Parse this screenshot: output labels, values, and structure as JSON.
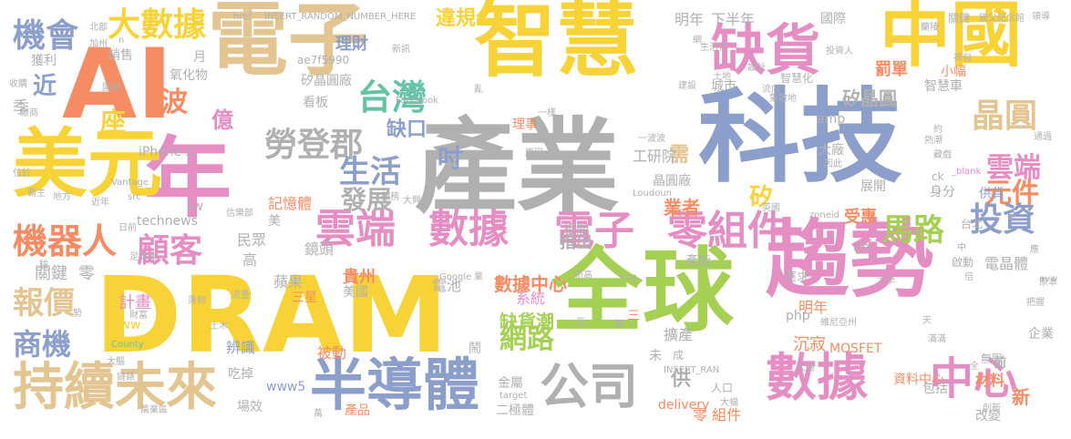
{
  "palette": {
    "yellow": "#f7d338",
    "blue": "#8c9fca",
    "gray": "#b0b0b0",
    "pink": "#e58ec4",
    "green": "#a6d054",
    "orange": "#f58c64",
    "tan": "#e3c592",
    "teal": "#66c2a5"
  },
  "words": [
    {
      "text": "產業",
      "color": "gray"
    },
    {
      "text": "科技",
      "color": "blue"
    },
    {
      "text": "DRAM",
      "color": "yellow"
    },
    {
      "text": "智慧",
      "color": "yellow"
    },
    {
      "text": "電子",
      "color": "tan"
    },
    {
      "text": "全球",
      "color": "green"
    },
    {
      "text": "趨勢",
      "color": "pink"
    },
    {
      "text": "中國",
      "color": "yellow"
    },
    {
      "text": "年",
      "color": "pink"
    },
    {
      "text": "美元",
      "color": "yellow"
    },
    {
      "text": "AI",
      "color": "orange"
    },
    {
      "text": "缺貨",
      "color": "pink"
    },
    {
      "text": "半導體",
      "color": "blue"
    },
    {
      "text": "持續未來",
      "color": "tan"
    },
    {
      "text": "數據",
      "color": "pink"
    },
    {
      "text": "中心",
      "color": "pink"
    },
    {
      "text": "公司",
      "color": "gray"
    },
    {
      "text": "雲端",
      "color": "pink"
    },
    {
      "text": "數據",
      "color": "pink"
    },
    {
      "text": "電子",
      "color": "pink"
    },
    {
      "text": "零組件",
      "color": "pink"
    },
    {
      "text": "大數據",
      "color": "yellow"
    },
    {
      "text": "機會",
      "color": "blue"
    },
    {
      "text": "台灣",
      "color": "teal"
    },
    {
      "text": "勞登郡",
      "color": "gray"
    },
    {
      "text": "機器人",
      "color": "orange"
    },
    {
      "text": "顧客",
      "color": "pink"
    },
    {
      "text": "晶圓",
      "color": "tan"
    },
    {
      "text": "雲端",
      "color": "pink"
    },
    {
      "text": "元件",
      "color": "orange"
    },
    {
      "text": "投資",
      "color": "blue"
    },
    {
      "text": "馬路",
      "color": "green"
    },
    {
      "text": "生活",
      "color": "blue"
    },
    {
      "text": "發展",
      "color": "gray"
    },
    {
      "text": "報價",
      "color": "tan"
    },
    {
      "text": "商機",
      "color": "blue"
    },
    {
      "text": "網路",
      "color": "green"
    },
    {
      "text": "缺貨潮",
      "color": "green"
    },
    {
      "text": "吋",
      "color": "blue"
    },
    {
      "text": "近",
      "color": "blue"
    },
    {
      "text": "波",
      "color": "orange"
    },
    {
      "text": "座",
      "color": "yellow"
    },
    {
      "text": "億",
      "color": "pink"
    },
    {
      "text": "矽",
      "color": "yellow"
    },
    {
      "text": "缺口",
      "color": "blue"
    },
    {
      "text": "違規",
      "color": "yellow"
    },
    {
      "text": "理財",
      "color": "blue"
    },
    {
      "text": "明年",
      "color": "gray"
    },
    {
      "text": "下半年",
      "color": "gray"
    },
    {
      "text": "罰單",
      "color": "orange"
    },
    {
      "text": "矽晶圓",
      "color": "gray"
    },
    {
      "text": "國際",
      "color": "gray"
    },
    {
      "text": "關鍵",
      "color": "gray"
    },
    {
      "text": "國父紀念館",
      "color": "gray"
    },
    {
      "text": "領導",
      "color": "gray"
    },
    {
      "text": "通過",
      "color": "gray"
    },
    {
      "text": "供貨",
      "color": "blue"
    },
    {
      "text": "需",
      "color": "tan"
    },
    {
      "text": "工研院",
      "color": "gray"
    },
    {
      "text": "晶圓廠",
      "color": "gray"
    },
    {
      "text": "業者",
      "color": "orange"
    },
    {
      "text": "大廠",
      "color": "gray"
    },
    {
      "text": "展開",
      "color": "gray"
    },
    {
      "text": "身分",
      "color": "gray"
    },
    {
      "text": "受惠",
      "color": "orange"
    },
    {
      "text": "cb",
      "color": "gray"
    },
    {
      "text": "指出",
      "color": "gray"
    },
    {
      "text": "相關",
      "color": "gray"
    },
    {
      "text": "產能",
      "color": "gray"
    },
    {
      "text": "應求",
      "color": "gray"
    },
    {
      "text": "明年",
      "color": "orange"
    },
    {
      "text": "電晶體",
      "color": "gray"
    },
    {
      "text": "企業",
      "color": "gray"
    },
    {
      "text": "無限",
      "color": "gray"
    },
    {
      "text": "前",
      "color": "gray"
    },
    {
      "text": "材料",
      "color": "orange"
    },
    {
      "text": "資料中心",
      "color": "orange"
    },
    {
      "text": "包括",
      "color": "gray"
    },
    {
      "text": "新",
      "color": "orange"
    },
    {
      "text": "改變",
      "color": "gray"
    },
    {
      "text": "擴產",
      "color": "gray"
    },
    {
      "text": "MOSFET",
      "color": "orange"
    },
    {
      "text": "沉寂",
      "color": "orange"
    },
    {
      "text": "數據中心",
      "color": "orange"
    },
    {
      "text": "系統",
      "color": "pink"
    },
    {
      "text": "貴州",
      "color": "orange"
    },
    {
      "text": "美國",
      "color": "gray"
    },
    {
      "text": "電池",
      "color": "gray"
    },
    {
      "text": "三星",
      "color": "orange"
    },
    {
      "text": "蘋果",
      "color": "gray"
    },
    {
      "text": "鏡頭",
      "color": "gray"
    },
    {
      "text": "民眾",
      "color": "gray"
    },
    {
      "text": "高",
      "color": "gray"
    },
    {
      "text": "關鍵",
      "color": "gray"
    },
    {
      "text": "零",
      "color": "gray"
    },
    {
      "text": "計畫",
      "color": "pink"
    },
    {
      "text": "財富",
      "color": "gray"
    },
    {
      "text": "辨識",
      "color": "blue"
    },
    {
      "text": "吃掉",
      "color": "gray"
    },
    {
      "text": "場效",
      "color": "gray"
    },
    {
      "text": "產品",
      "color": "orange"
    },
    {
      "text": "www5",
      "color": "blue"
    },
    {
      "text": "www",
      "color": "yellow"
    },
    {
      "text": "二極體",
      "color": "gray"
    },
    {
      "text": "金屬",
      "color": "gray"
    },
    {
      "text": "被動",
      "color": "orange"
    },
    {
      "text": "零 組件",
      "color": "orange"
    },
    {
      "text": "delivery",
      "color": "orange"
    },
    {
      "text": "供",
      "color": "gray"
    },
    {
      "text": "記憶體",
      "color": "orange"
    },
    {
      "text": "看板",
      "color": "gray"
    },
    {
      "text": "technews",
      "color": "gray"
    },
    {
      "text": "iPhone X",
      "color": "gray"
    },
    {
      "text": "tw",
      "color": "gray"
    },
    {
      "text": "美",
      "color": "gray"
    },
    {
      "text": "ae7f5990",
      "color": "gray"
    },
    {
      "text": "矽晶圓廠",
      "color": "gray"
    },
    {
      "text": "氧化物",
      "color": "gray"
    },
    {
      "text": "季",
      "color": "gray"
    },
    {
      "text": "銷售",
      "color": "gray"
    },
    {
      "text": "獲利",
      "color": "gray"
    },
    {
      "text": "月",
      "color": "gray"
    },
    {
      "text": "智慧車",
      "color": "gray"
    },
    {
      "text": "小幅",
      "color": "orange"
    },
    {
      "text": "城市",
      "color": "gray"
    },
    {
      "text": "amp",
      "color": "gray"
    },
    {
      "text": "智慧化",
      "color": "gray"
    },
    {
      "text": "php",
      "color": "gray"
    },
    {
      "text": "INSERT_RANDOM_NUMBER_HERE",
      "color": "gray"
    },
    {
      "text": "href",
      "color": "gray"
    },
    {
      "text": "Facebook",
      "color": "gray"
    },
    {
      "text": "Google",
      "color": "gray"
    },
    {
      "text": "County",
      "color": "teal"
    },
    {
      "text": "Vantage",
      "color": "gray"
    },
    {
      "text": "Loudoun",
      "color": "gray"
    },
    {
      "text": "img",
      "color": "gray"
    },
    {
      "text": "target",
      "color": "gray"
    },
    {
      "text": "INSERT_RAN",
      "color": "gray"
    },
    {
      "text": "zoneid",
      "color": "gray"
    },
    {
      "text": "_blank",
      "color": "pink"
    },
    {
      "text": "src",
      "color": "gray"
    },
    {
      "text": "ck",
      "color": "gray"
    },
    {
      "text": "avw",
      "color": "gray"
    },
    {
      "text": "n",
      "color": "gray"
    },
    {
      "text": "原本",
      "color": "gray"
    },
    {
      "text": "把握",
      "color": "gray"
    },
    {
      "text": "流量",
      "color": "gray"
    },
    {
      "text": "新訊",
      "color": "gray"
    },
    {
      "text": "理事",
      "color": "orange"
    },
    {
      "text": "一波波",
      "color": "gray"
    },
    {
      "text": "加州",
      "color": "gray"
    },
    {
      "text": "北部",
      "color": "gray"
    },
    {
      "text": "土木",
      "color": "gray"
    },
    {
      "text": "蓬勃",
      "color": "gray"
    },
    {
      "text": "熱潮",
      "color": "gray"
    },
    {
      "text": "藏戲",
      "color": "gray"
    },
    {
      "text": "位於",
      "color": "gray"
    },
    {
      "text": "地方",
      "color": "gray"
    },
    {
      "text": "霸主",
      "color": "gray"
    },
    {
      "text": "日前",
      "color": "gray"
    },
    {
      "text": "足球場",
      "color": "gray"
    },
    {
      "text": "信樂部",
      "color": "gray"
    },
    {
      "text": "維尼亞州",
      "color": "gray"
    },
    {
      "text": "投資人",
      "color": "gray"
    },
    {
      "text": "新高",
      "color": "gray"
    },
    {
      "text": "英國",
      "color": "gray"
    },
    {
      "text": "設計",
      "color": "gray"
    },
    {
      "text": "業",
      "color": "gray"
    },
    {
      "text": "亂",
      "color": "gray"
    },
    {
      "text": "鬧",
      "color": "gray"
    },
    {
      "text": "三",
      "color": "orange"
    },
    {
      "text": "未",
      "color": "gray"
    },
    {
      "text": "成",
      "color": "gray"
    },
    {
      "text": "類",
      "color": "gray"
    },
    {
      "text": "萬",
      "color": "gray"
    },
    {
      "text": "人口",
      "color": "gray"
    },
    {
      "text": "大幅",
      "color": "gray"
    },
    {
      "text": "大樓",
      "color": "gray"
    },
    {
      "text": "台北",
      "color": "gray"
    },
    {
      "text": "中",
      "color": "gray"
    },
    {
      "text": "啟動",
      "color": "gray"
    },
    {
      "text": "全",
      "color": "gray"
    },
    {
      "text": "倍",
      "color": "gray"
    },
    {
      "text": "至",
      "color": "gray"
    },
    {
      "text": "滿滿",
      "color": "gray"
    },
    {
      "text": "一樣",
      "color": "gray"
    },
    {
      "text": "荷包",
      "color": "gray"
    },
    {
      "text": "創新",
      "color": "gray"
    },
    {
      "text": "蘭陵",
      "color": "gray"
    },
    {
      "text": "生活化",
      "color": "gray"
    },
    {
      "text": "土地",
      "color": "gray"
    },
    {
      "text": "流向",
      "color": "gray"
    },
    {
      "text": "收購",
      "color": "gray"
    },
    {
      "text": "廠商",
      "color": "gray"
    },
    {
      "text": "圍繞",
      "color": "gray"
    },
    {
      "text": "集散地",
      "color": "gray"
    },
    {
      "text": "原因",
      "color": "gray"
    },
    {
      "text": "服務",
      "color": "gray"
    },
    {
      "text": "大興",
      "color": "gray"
    },
    {
      "text": "近年",
      "color": "gray"
    },
    {
      "text": "鏈錶",
      "color": "gray"
    },
    {
      "text": "建設",
      "color": "gray"
    },
    {
      "text": "大學",
      "color": "gray"
    },
    {
      "text": "因此",
      "color": "gray"
    },
    {
      "text": "天",
      "color": "gray"
    },
    {
      "text": "應",
      "color": "gray"
    },
    {
      "text": "約",
      "color": "gray"
    },
    {
      "text": "網",
      "color": "gray"
    },
    {
      "text": "a",
      "color": "gray"
    },
    {
      "text": "驗",
      "color": "gray"
    },
    {
      "text": "勢",
      "color": "gray"
    },
    {
      "text": "大腦",
      "color": "gray"
    },
    {
      "text": "萬業區",
      "color": "gray"
    }
  ]
}
